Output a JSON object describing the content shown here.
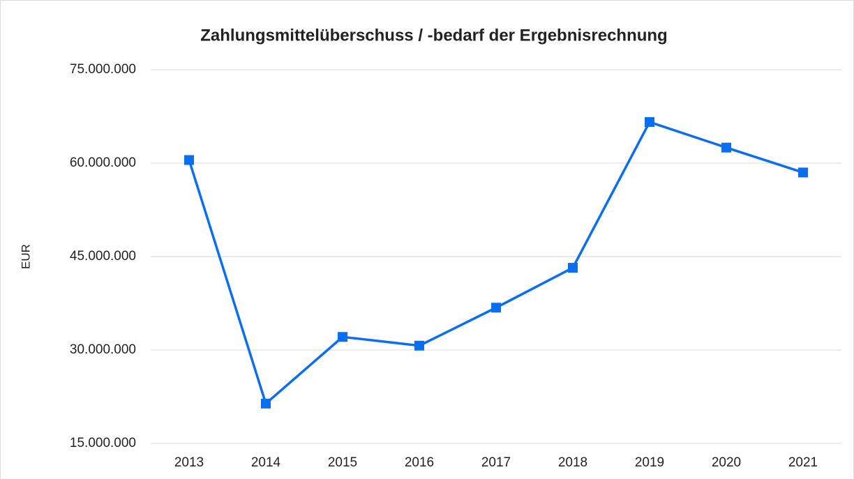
{
  "chart_data": {
    "type": "line",
    "title": "Zahlungsmittelüberschuss / -bedarf der Ergebnisrechnung",
    "y_label": "EUR",
    "categories": [
      "2013",
      "2014",
      "2015",
      "2016",
      "2017",
      "2018",
      "2019",
      "2020",
      "2021"
    ],
    "series": [
      {
        "name": "Zahlungsmittelüberschuss / -bedarf",
        "color": "#0a6ef0",
        "values": [
          60500000,
          21400000,
          32100000,
          30700000,
          36800000,
          43200000,
          66600000,
          62500000,
          58500000
        ]
      }
    ],
    "ylim": [
      15000000,
      75000000
    ],
    "yticks": [
      {
        "value": 15000000,
        "label": "15.000.000"
      },
      {
        "value": 30000000,
        "label": "30.000.000"
      },
      {
        "value": 45000000,
        "label": "45.000.000"
      },
      {
        "value": 60000000,
        "label": "60.000.000"
      },
      {
        "value": 75000000,
        "label": "75.000.000"
      }
    ],
    "grid": true
  }
}
